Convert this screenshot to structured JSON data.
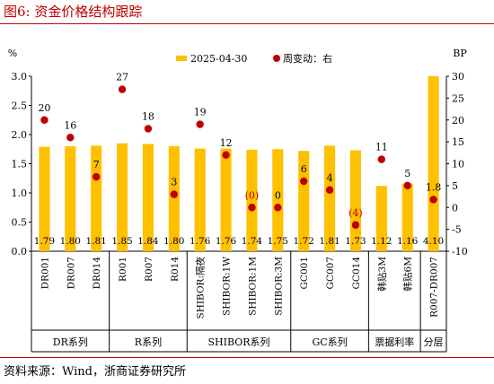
{
  "figure": {
    "label": "图6:",
    "title": "资金价格结构跟踪",
    "source": "资料来源：Wind，浙商证券研究所"
  },
  "colors": {
    "bar": "#ffc000",
    "dot": "#c00000",
    "negative_label": "#c00000",
    "title": "#c00000"
  },
  "chart_data": {
    "type": "bar",
    "left_axis": {
      "label": "%",
      "min": 0,
      "max": 3.0,
      "ticks": [
        "0.0",
        "0.5",
        "1.0",
        "1.5",
        "2.0",
        "2.5",
        "3.0"
      ]
    },
    "right_axis": {
      "label": "BP",
      "min": -10,
      "max": 30,
      "ticks": [
        "-10",
        "-5",
        "0",
        "5",
        "10",
        "15",
        "20",
        "25",
        "30"
      ]
    },
    "legend": {
      "placement": "top",
      "bar_label": "2025-04-30",
      "dot_label": "周变动：右"
    },
    "categories": [
      "DR001",
      "DR007",
      "DR014",
      "R001",
      "R007",
      "R014",
      "SHIBOR:隔夜",
      "SHIBOR:1W",
      "SHIBOR:1M",
      "SHIBOR:3M",
      "GC001",
      "GC007",
      "GC014",
      "韩贴3M",
      "韩贴6M",
      "R007-DR007"
    ],
    "bar_values": [
      1.79,
      1.8,
      1.81,
      1.85,
      1.84,
      1.8,
      1.76,
      1.76,
      1.74,
      1.75,
      1.72,
      1.81,
      1.73,
      1.12,
      1.16,
      4.1
    ],
    "bar_value_labels": [
      "1.79",
      "1.80",
      "1.81",
      "1.85",
      "1.84",
      "1.80",
      "1.76",
      "1.76",
      "1.74",
      "1.75",
      "1.72",
      "1.81",
      "1.73",
      "1.12",
      "1.16",
      "4.10"
    ],
    "change_values": [
      20,
      16,
      7,
      27,
      18,
      3,
      19,
      12,
      0,
      0,
      6,
      4,
      -4,
      11,
      5,
      1.8
    ],
    "change_labels": [
      "20",
      "16",
      "7",
      "27",
      "18",
      "3",
      "19",
      "12",
      "(0)",
      "0",
      "6",
      "4",
      "(4)",
      "11",
      "5",
      "1.8"
    ],
    "change_label_negative": [
      false,
      false,
      false,
      false,
      false,
      false,
      false,
      false,
      true,
      false,
      false,
      false,
      true,
      false,
      false,
      false
    ],
    "groups": [
      {
        "label": "DR系列",
        "start": 0,
        "end": 2
      },
      {
        "label": "R系列",
        "start": 3,
        "end": 5
      },
      {
        "label": "SHIBOR系列",
        "start": 6,
        "end": 9
      },
      {
        "label": "GC系列",
        "start": 10,
        "end": 12
      },
      {
        "label": "票据利率",
        "start": 13,
        "end": 14
      },
      {
        "label": "分层",
        "start": 15,
        "end": 15
      }
    ]
  }
}
